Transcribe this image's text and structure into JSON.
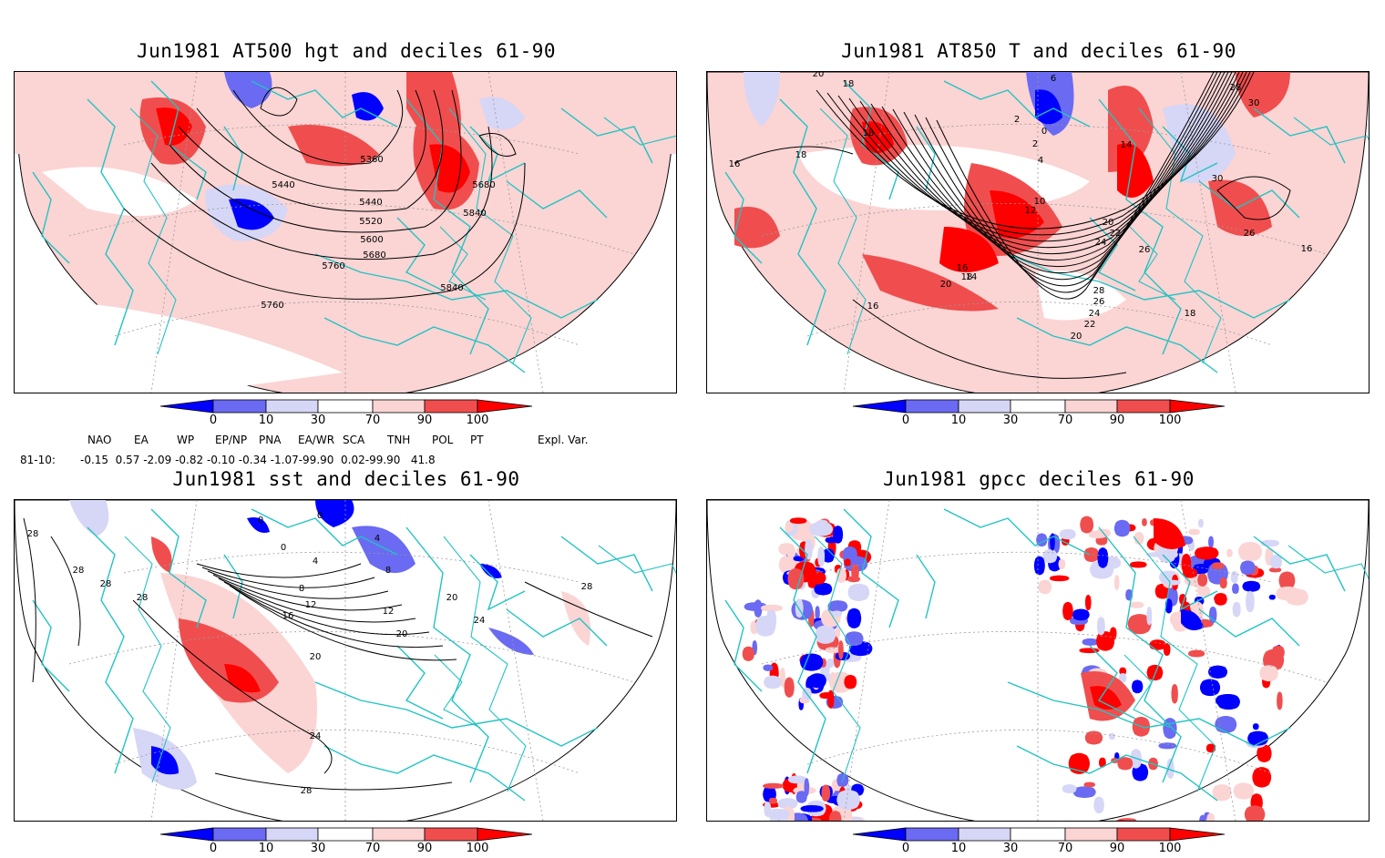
{
  "panels": [
    {
      "title": "Jun1981 AT500 hgt and deciles 61-90",
      "contour_labels": [
        "5360",
        "5440",
        "5440",
        "5520",
        "5600",
        "5680",
        "5760",
        "5840",
        "5760",
        "5680",
        "5840"
      ]
    },
    {
      "title": "Jun1981 AT850 T and deciles 61-90",
      "contour_labels": [
        "20",
        "18",
        "18",
        "16",
        "18",
        "14",
        "16",
        "18",
        "20",
        "16",
        "12",
        "10",
        "14",
        "20",
        "22",
        "24",
        "26",
        "28",
        "26",
        "24",
        "22",
        "20",
        "18",
        "28",
        "30",
        "30",
        "26",
        "16",
        "6",
        "2",
        "0",
        "2",
        "4"
      ]
    },
    {
      "title": "Jun1981 sst and deciles 61-90",
      "contour_labels": [
        "28",
        "28",
        "28",
        "28",
        "0",
        "0",
        "0",
        "4",
        "4",
        "8",
        "8",
        "12",
        "12",
        "16",
        "20",
        "20",
        "20",
        "24",
        "24",
        "28",
        "28"
      ]
    },
    {
      "title": "Jun1981 gpcc deciles 61-90",
      "contour_labels": []
    }
  ],
  "colorbar": {
    "labels": [
      "0",
      "10",
      "30",
      "70",
      "90",
      "100"
    ],
    "colors": [
      "#0000ff",
      "#6a6af2",
      "#d6d6f6",
      "#ffffff",
      "#fbd4d4",
      "#f04e4e",
      "#ff0000"
    ]
  },
  "indices": {
    "headers": [
      "NAO",
      "EA",
      "WP",
      "EP/NP",
      "PNA",
      "EA/WR",
      "SCA",
      "TNH",
      "POL",
      "PT",
      "Expl. Var."
    ],
    "row_label": "81-10:",
    "values_line": "-0.15  0.57 -2.09 -0.82 -0.10 -0.34 -1.07-99.90  0.02-99.90   41.8"
  },
  "map_colors": {
    "coast": "#22c3c3",
    "contour": "#000000",
    "grid": "#888888"
  }
}
